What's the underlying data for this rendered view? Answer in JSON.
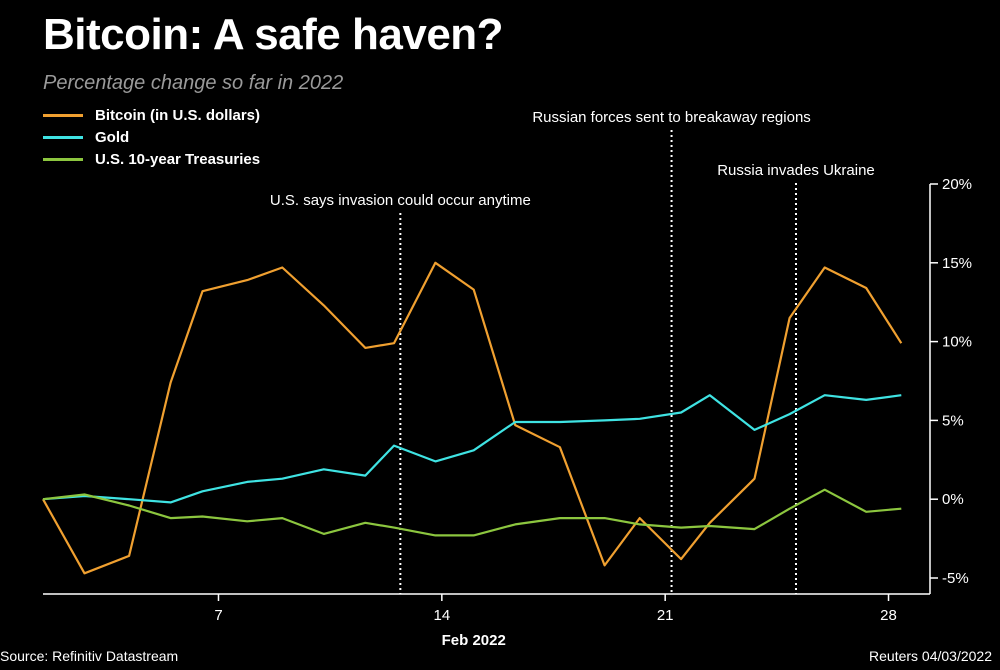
{
  "chart_data": {
    "type": "line",
    "title": "Bitcoin: A safe haven?",
    "subtitle": "Percentage change so far in 2022",
    "xlabel": "Feb 2022",
    "ylim": [
      -5,
      20
    ],
    "x_ticks": [
      {
        "day": 7,
        "label": "7"
      },
      {
        "day": 14,
        "label": "14"
      },
      {
        "day": 21,
        "label": "21"
      },
      {
        "day": 28,
        "label": "28"
      }
    ],
    "y_ticks": [
      {
        "value": 20,
        "label": "20%"
      },
      {
        "value": 15,
        "label": "15%"
      },
      {
        "value": 10,
        "label": "10%"
      },
      {
        "value": 5,
        "label": "5%"
      },
      {
        "value": 0,
        "label": "0%"
      },
      {
        "value": -5,
        "label": "-5%"
      }
    ],
    "xlim": [
      1.5,
      32.3
    ],
    "x": [
      1.5,
      3.0,
      4.2,
      5.5,
      6.7,
      7.9,
      9.1,
      10.3,
      11.5,
      12.7,
      13.9,
      15.1,
      16.3,
      17.5,
      18.8,
      20.0,
      21.2,
      22.4,
      23.6,
      24.8,
      26.0,
      27.2,
      28.4,
      29.6,
      30.9,
      32.1,
      32.3
    ],
    "series": [
      {
        "name": "Bitcoin (in U.S. dollars)",
        "color": "#f0a030",
        "points": [
          [
            1.5,
            0.0
          ],
          [
            2.8,
            -4.7
          ],
          [
            4.2,
            -3.6
          ],
          [
            5.5,
            7.4
          ],
          [
            6.5,
            13.2
          ],
          [
            7.9,
            13.9
          ],
          [
            9.0,
            14.7
          ],
          [
            10.3,
            12.3
          ],
          [
            11.6,
            9.6
          ],
          [
            12.5,
            9.9
          ],
          [
            13.8,
            15.0
          ],
          [
            15.0,
            13.3
          ],
          [
            16.3,
            4.7
          ],
          [
            17.7,
            3.3
          ],
          [
            19.1,
            -4.2
          ],
          [
            20.2,
            -1.2
          ],
          [
            21.5,
            -3.8
          ],
          [
            22.4,
            -1.5
          ],
          [
            23.8,
            1.3
          ],
          [
            24.9,
            11.5
          ],
          [
            26.0,
            14.7
          ],
          [
            27.3,
            13.4
          ],
          [
            28.4,
            9.9
          ]
        ]
      },
      {
        "name": "Gold",
        "color": "#3fe3e3",
        "points": [
          [
            1.5,
            0.0
          ],
          [
            2.8,
            0.2
          ],
          [
            4.2,
            0.0
          ],
          [
            5.5,
            -0.2
          ],
          [
            6.5,
            0.5
          ],
          [
            7.9,
            1.1
          ],
          [
            9.0,
            1.3
          ],
          [
            10.3,
            1.9
          ],
          [
            11.6,
            1.5
          ],
          [
            12.5,
            3.4
          ],
          [
            13.8,
            2.4
          ],
          [
            15.0,
            3.1
          ],
          [
            16.3,
            4.9
          ],
          [
            17.7,
            4.9
          ],
          [
            19.1,
            5.0
          ],
          [
            20.2,
            5.1
          ],
          [
            21.5,
            5.5
          ],
          [
            22.4,
            6.6
          ],
          [
            23.8,
            4.4
          ],
          [
            24.9,
            5.4
          ],
          [
            26.0,
            6.6
          ],
          [
            27.3,
            6.3
          ],
          [
            28.4,
            6.6
          ]
        ]
      },
      {
        "name": "U.S. 10-year Treasuries",
        "color": "#8cc63f",
        "points": [
          [
            1.5,
            0.0
          ],
          [
            2.8,
            0.3
          ],
          [
            4.2,
            -0.4
          ],
          [
            5.5,
            -1.2
          ],
          [
            6.5,
            -1.1
          ],
          [
            7.9,
            -1.4
          ],
          [
            9.0,
            -1.2
          ],
          [
            10.3,
            -2.2
          ],
          [
            11.6,
            -1.5
          ],
          [
            12.5,
            -1.8
          ],
          [
            13.8,
            -2.3
          ],
          [
            15.0,
            -2.3
          ],
          [
            16.3,
            -1.6
          ],
          [
            17.7,
            -1.2
          ],
          [
            19.1,
            -1.2
          ],
          [
            20.2,
            -1.6
          ],
          [
            21.5,
            -1.8
          ],
          [
            22.4,
            -1.7
          ],
          [
            23.8,
            -1.9
          ],
          [
            24.9,
            -0.6
          ],
          [
            26.0,
            0.6
          ],
          [
            27.3,
            -0.8
          ],
          [
            28.4,
            -0.6
          ]
        ]
      }
    ],
    "annotations": [
      {
        "day": 12.7,
        "label": "U.S. says invasion could occur anytime"
      },
      {
        "day": 21.2,
        "label": "Russian forces sent to breakaway regions"
      },
      {
        "day": 25.1,
        "label": "Russia invades Ukraine"
      }
    ],
    "source": "Source: Refinitiv Datastream",
    "credit": "Reuters 04/03/2022"
  }
}
